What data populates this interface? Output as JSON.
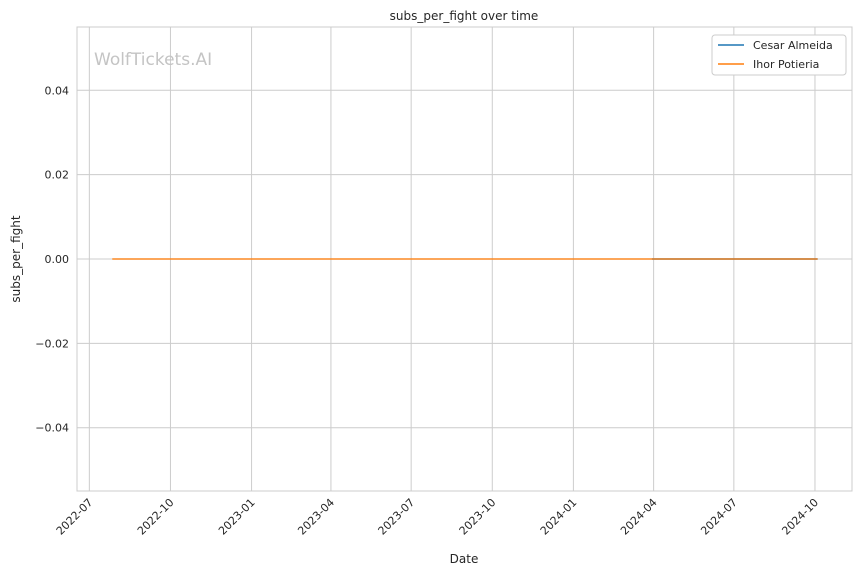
{
  "chart_data": {
    "type": "line",
    "title": "subs_per_fight over time",
    "xlabel": "Date",
    "ylabel": "subs_per_fight",
    "watermark": "WolfTickets.AI",
    "xlim": [
      "2022-06-17",
      "2024-11-12"
    ],
    "ylim": [
      -0.055,
      0.055
    ],
    "x_ticks": [
      "2022-07",
      "2022-10",
      "2023-01",
      "2023-04",
      "2023-07",
      "2023-10",
      "2024-01",
      "2024-04",
      "2024-07",
      "2024-10"
    ],
    "y_ticks": [
      -0.04,
      -0.02,
      0.0,
      0.02,
      0.04
    ],
    "y_tick_labels": [
      "−0.04",
      "−0.02",
      "0.00",
      "0.02",
      "0.04"
    ],
    "grid": true,
    "legend_position": "top-right",
    "series": [
      {
        "name": "Cesar Almeida",
        "color": "#1f77b4",
        "x": [
          "2024-03-30",
          "2024-10-04"
        ],
        "y": [
          0.0,
          0.0
        ]
      },
      {
        "name": "Ihor Potieria",
        "color": "#ff7f0e",
        "x": [
          "2022-07-27",
          "2024-10-04"
        ],
        "y": [
          0.0,
          0.0
        ]
      }
    ]
  }
}
